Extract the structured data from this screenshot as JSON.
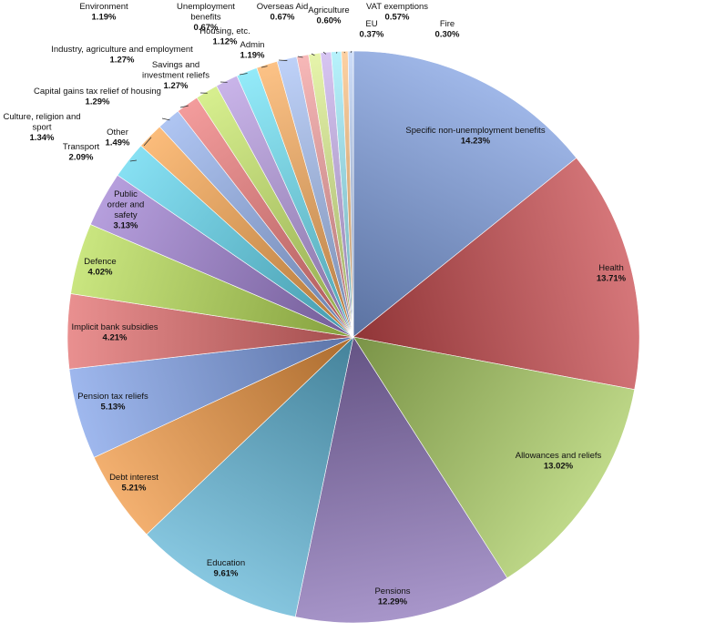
{
  "chart_data": {
    "type": "pie",
    "title": "",
    "legend": "none",
    "slices": [
      {
        "label": "Specific non-unemployment benefits",
        "value": 14.23,
        "display": "14.23%",
        "color": "#7f9fe0"
      },
      {
        "label": "Health",
        "value": 13.71,
        "display": "13.71%",
        "color": "#c8494d"
      },
      {
        "label": "Allowances and reliefs",
        "value": 13.02,
        "display": "13.02%",
        "color": "#a9cc62"
      },
      {
        "label": "Pensions",
        "value": 12.29,
        "display": "12.29%",
        "color": "#8b73b8"
      },
      {
        "label": "Education",
        "value": 9.61,
        "display": "9.61%",
        "color": "#5fb4d6"
      },
      {
        "label": "Debt interest",
        "value": 5.21,
        "display": "5.21%",
        "color": "#ef9640"
      },
      {
        "label": "Pension tax reliefs",
        "value": 5.13,
        "display": "5.13%",
        "color": "#7fa0e8"
      },
      {
        "label": "Implicit bank subsidies",
        "value": 4.21,
        "display": "4.21%",
        "color": "#e26b6b"
      },
      {
        "label": "Defence",
        "value": 4.02,
        "display": "4.02%",
        "color": "#b8de55"
      },
      {
        "label": "Public order and safety",
        "value": 3.13,
        "display": "3.13%",
        "color": "#9e7fd2"
      },
      {
        "label": "Transport",
        "value": 2.09,
        "display": "2.09%",
        "color": "#5fd6ef"
      },
      {
        "label": "Other",
        "value": 1.49,
        "display": "1.49%",
        "color": "#f9a64f"
      },
      {
        "label": "Culture, religion and sport",
        "value": 1.34,
        "display": "1.34%",
        "color": "#94b2ee"
      },
      {
        "label": "Capital gains tax relief of housing",
        "value": 1.29,
        "display": "1.29%",
        "color": "#ef7b7b"
      },
      {
        "label": "Savings and investment reliefs",
        "value": 1.27,
        "display": "1.27%",
        "color": "#c9ea6a"
      },
      {
        "label": "Industry, agriculture and employment",
        "value": 1.27,
        "display": "1.27%",
        "color": "#b79be2"
      },
      {
        "label": "Environment",
        "value": 1.19,
        "display": "1.19%",
        "color": "#6fe3f7"
      },
      {
        "label": "Admin",
        "value": 1.19,
        "display": "1.19%",
        "color": "#fbae5e"
      },
      {
        "label": "Housing, etc.",
        "value": 1.12,
        "display": "1.12%",
        "color": "#a8c2f5"
      },
      {
        "label": "Unemployment benefits",
        "value": 0.67,
        "display": "0.67%",
        "color": "#f4a0a0"
      },
      {
        "label": "Overseas Aid",
        "value": 0.67,
        "display": "0.67%",
        "color": "#ddf08f"
      },
      {
        "label": "Agriculture",
        "value": 0.6,
        "display": "0.60%",
        "color": "#c9b2ee"
      },
      {
        "label": "VAT exemptions",
        "value": 0.57,
        "display": "0.57%",
        "color": "#9feefb"
      },
      {
        "label": "EU",
        "value": 0.37,
        "display": "0.37%",
        "color": "#fcc283"
      },
      {
        "label": "Fire",
        "value": 0.3,
        "display": "0.30%",
        "color": "#bcd2f7"
      }
    ]
  }
}
